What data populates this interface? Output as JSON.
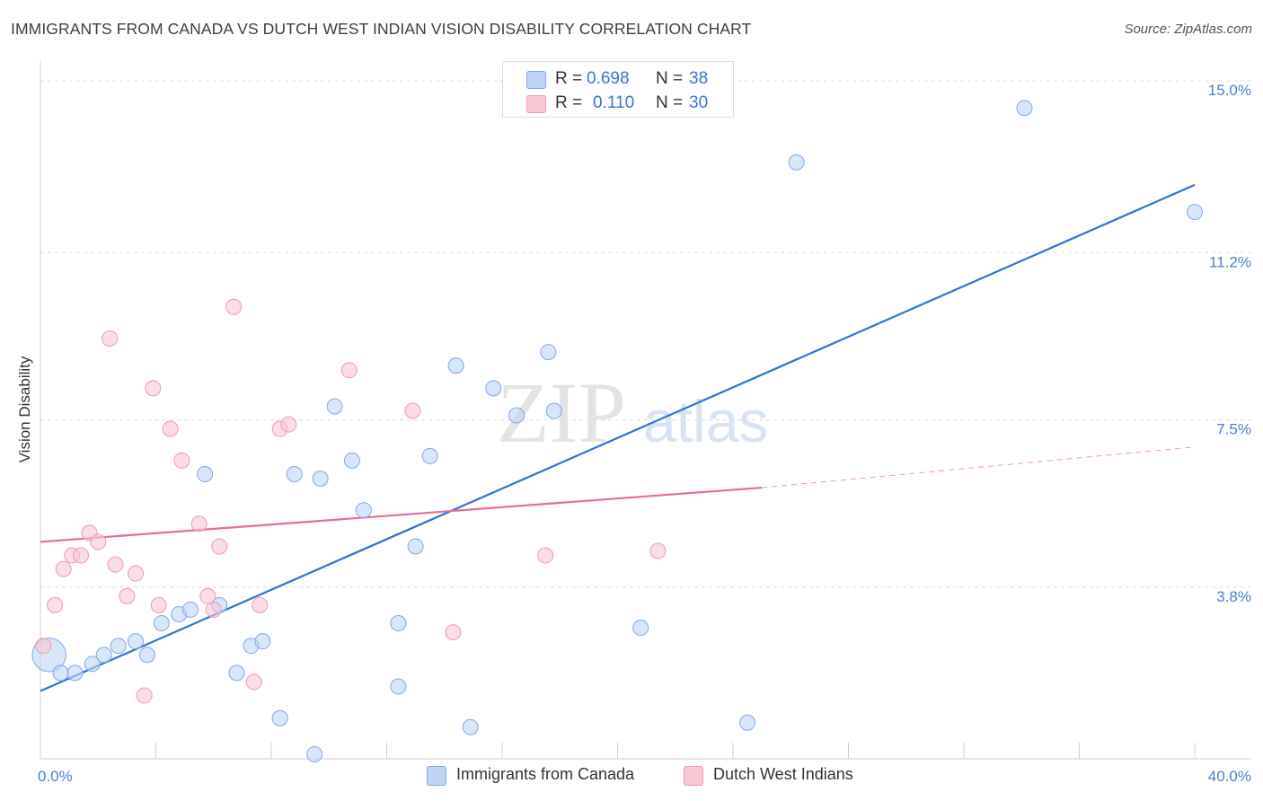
{
  "title": "IMMIGRANTS FROM CANADA VS DUTCH WEST INDIAN VISION DISABILITY CORRELATION CHART",
  "source": "Source: ZipAtlas.com",
  "watermark": {
    "zip": "ZIP",
    "atlas": "atlas"
  },
  "legend_top": [
    {
      "r_label": "R =",
      "r_value": "0.698",
      "n_label": "N =",
      "n_value": "38"
    },
    {
      "r_label": "R =",
      "r_value": "0.110",
      "n_label": "N =",
      "n_value": "30"
    }
  ],
  "legend_bottom": [
    "Immigrants from Canada",
    "Dutch West Indians"
  ],
  "colors": {
    "blue_fill": "#bdd5f5",
    "blue_stroke": "#7ea9e4",
    "blue_line": "#2d73d2",
    "pink_fill": "#f9c6d4",
    "pink_stroke": "#ec9ab3",
    "pink_line": "#e86c95",
    "grid": "#dcdcdc",
    "tick_text": "#4a7fd0"
  },
  "chart_data": {
    "type": "scatter",
    "title": "IMMIGRANTS FROM CANADA VS DUTCH WEST INDIAN VISION DISABILITY CORRELATION CHART",
    "xlabel": "",
    "ylabel": "Vision Disability",
    "xlim": [
      0,
      40
    ],
    "ylim": [
      0,
      15.4
    ],
    "x_tick_labels": [
      "0.0%",
      "40.0%"
    ],
    "y_ticks": [
      3.8,
      7.5,
      11.2,
      15.0
    ],
    "y_tick_labels": [
      "3.8%",
      "7.5%",
      "11.2%",
      "15.0%"
    ],
    "grid": true,
    "series": [
      {
        "name": "Immigrants from Canada",
        "R": 0.698,
        "N": 38,
        "points": [
          [
            0.3,
            2.3,
            2.2
          ],
          [
            0.7,
            1.9,
            1
          ],
          [
            1.2,
            1.9,
            1
          ],
          [
            1.8,
            2.1,
            1
          ],
          [
            2.2,
            2.3,
            1
          ],
          [
            2.7,
            2.5,
            1
          ],
          [
            3.3,
            2.6,
            1
          ],
          [
            3.7,
            2.3,
            1
          ],
          [
            4.2,
            3.0,
            1
          ],
          [
            4.8,
            3.2,
            1
          ],
          [
            5.2,
            3.3,
            1
          ],
          [
            5.7,
            6.3,
            1
          ],
          [
            6.2,
            3.4,
            1
          ],
          [
            6.8,
            1.9,
            1
          ],
          [
            7.3,
            2.5,
            1
          ],
          [
            7.7,
            2.6,
            1
          ],
          [
            8.3,
            0.9,
            1
          ],
          [
            8.8,
            6.3,
            1
          ],
          [
            9.5,
            0.1,
            1
          ],
          [
            9.7,
            6.2,
            1
          ],
          [
            10.2,
            7.8,
            1
          ],
          [
            10.8,
            6.6,
            1
          ],
          [
            11.2,
            5.5,
            1
          ],
          [
            12.4,
            3.0,
            1
          ],
          [
            12.4,
            1.6,
            1
          ],
          [
            13.0,
            4.7,
            1
          ],
          [
            13.5,
            6.7,
            1
          ],
          [
            14.4,
            8.7,
            1
          ],
          [
            14.9,
            0.7,
            1
          ],
          [
            15.7,
            8.2,
            1
          ],
          [
            16.5,
            7.6,
            1
          ],
          [
            17.6,
            9.0,
            1
          ],
          [
            17.8,
            7.7,
            1
          ],
          [
            20.8,
            2.9,
            1
          ],
          [
            24.5,
            0.8,
            1
          ],
          [
            26.2,
            13.2,
            1
          ],
          [
            34.1,
            14.4,
            1
          ],
          [
            40.0,
            12.1,
            1
          ]
        ],
        "trend": {
          "x": [
            0,
            40
          ],
          "y": [
            1.5,
            12.7
          ]
        }
      },
      {
        "name": "Dutch West Indians",
        "R": 0.11,
        "N": 30,
        "points": [
          [
            0.1,
            2.5,
            1
          ],
          [
            0.5,
            3.4,
            1
          ],
          [
            0.8,
            4.2,
            1
          ],
          [
            1.1,
            4.5,
            1
          ],
          [
            1.4,
            4.5,
            1
          ],
          [
            1.7,
            5.0,
            1
          ],
          [
            2.0,
            4.8,
            1
          ],
          [
            2.4,
            9.3,
            1
          ],
          [
            2.6,
            4.3,
            1
          ],
          [
            3.0,
            3.6,
            1
          ],
          [
            3.3,
            4.1,
            1
          ],
          [
            3.6,
            1.4,
            1
          ],
          [
            3.9,
            8.2,
            1
          ],
          [
            4.1,
            3.4,
            1
          ],
          [
            4.5,
            7.3,
            1
          ],
          [
            4.9,
            6.6,
            1
          ],
          [
            5.5,
            5.2,
            1
          ],
          [
            5.8,
            3.6,
            1
          ],
          [
            6.0,
            3.3,
            1
          ],
          [
            6.2,
            4.7,
            1
          ],
          [
            6.7,
            10.0,
            1
          ],
          [
            7.4,
            1.7,
            1
          ],
          [
            7.6,
            3.4,
            1
          ],
          [
            8.3,
            7.3,
            1
          ],
          [
            8.6,
            7.4,
            1
          ],
          [
            10.7,
            8.6,
            1
          ],
          [
            12.9,
            7.7,
            1
          ],
          [
            14.3,
            2.8,
            1
          ],
          [
            17.5,
            4.5,
            1
          ],
          [
            21.4,
            4.6,
            1
          ]
        ],
        "trend": {
          "x": [
            0,
            25
          ],
          "y": [
            4.8,
            6.0
          ]
        },
        "trend_dashed": {
          "x": [
            25,
            40
          ],
          "y": [
            6.0,
            6.9
          ]
        }
      }
    ]
  }
}
